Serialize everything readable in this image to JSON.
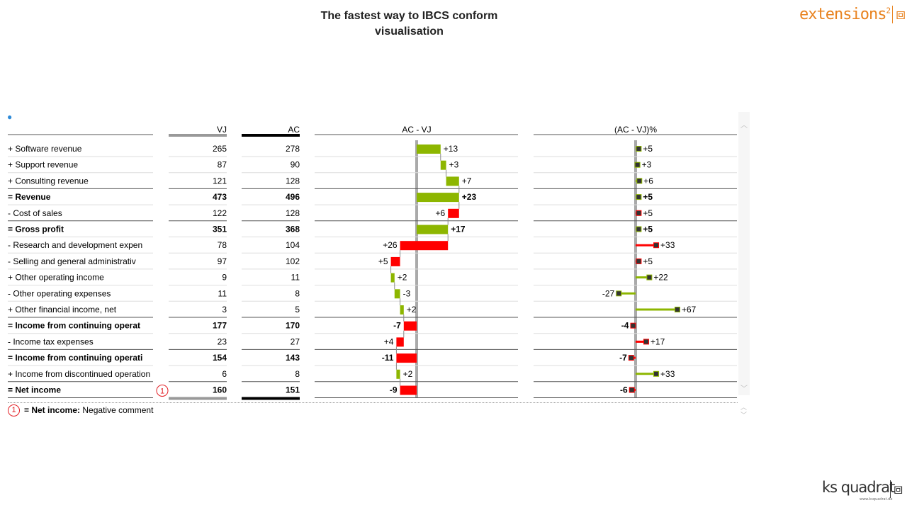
{
  "title_line1": "The fastest  way to IBCS conform",
  "title_line2": "visualisation",
  "logo_top": {
    "text": "extensions",
    "sup": "2",
    "mark": "⧈"
  },
  "logo_bottom": {
    "text": "ks quadrat",
    "sub": "www.ksquadrat.de",
    "mark": "⧈"
  },
  "comment": {
    "marker": "1",
    "label": "= Net income:",
    "text": "Negative comment"
  },
  "colors": {
    "positive": "#8db600",
    "negative": "#ff0000",
    "axis": "#aaaaaa",
    "marker": "#333333"
  },
  "chart_data": {
    "type": "table",
    "columns": {
      "label": "",
      "vj": "VJ",
      "ac": "AC",
      "delta": "AC - VJ",
      "delta_pct": "(AC - VJ)%"
    },
    "rows": [
      {
        "label": "+ Software revenue",
        "vj": 265,
        "ac": 278,
        "delta": 13,
        "delta_label": "+13",
        "pct": 5,
        "pct_label": "+5",
        "bold": false,
        "total": false
      },
      {
        "label": "+ Support revenue",
        "vj": 87,
        "ac": 90,
        "delta": 3,
        "delta_label": "+3",
        "pct": 3,
        "pct_label": "+3",
        "bold": false,
        "total": false
      },
      {
        "label": "+ Consulting revenue",
        "vj": 121,
        "ac": 128,
        "delta": 7,
        "delta_label": "+7",
        "pct": 6,
        "pct_label": "+6",
        "bold": false,
        "total": false
      },
      {
        "label": "= Revenue",
        "vj": 473,
        "ac": 496,
        "delta": 23,
        "delta_label": "+23",
        "pct": 5,
        "pct_label": "+5",
        "bold": true,
        "total": true
      },
      {
        "label": "- Cost of sales",
        "vj": 122,
        "ac": 128,
        "delta": -6,
        "delta_label": "+6",
        "pct": 5,
        "pct_label": "+5",
        "bold": false,
        "total": false
      },
      {
        "label": "= Gross profit",
        "vj": 351,
        "ac": 368,
        "delta": 17,
        "delta_label": "+17",
        "pct": 5,
        "pct_label": "+5",
        "bold": true,
        "total": true
      },
      {
        "label": "- Research and development expen",
        "vj": 78,
        "ac": 104,
        "delta": -26,
        "delta_label": "+26",
        "pct": 33,
        "pct_label": "+33",
        "bold": false,
        "total": false
      },
      {
        "label": "- Selling and general administrativ",
        "vj": 97,
        "ac": 102,
        "delta": -5,
        "delta_label": "+5",
        "pct": 5,
        "pct_label": "+5",
        "bold": false,
        "total": false
      },
      {
        "label": "+ Other operating income",
        "vj": 9,
        "ac": 11,
        "delta": 2,
        "delta_label": "+2",
        "pct": 22,
        "pct_label": "+22",
        "bold": false,
        "total": false
      },
      {
        "label": "- Other operating expenses",
        "vj": 11,
        "ac": 8,
        "delta": 3,
        "delta_label": "-3",
        "pct": -27,
        "pct_label": "-27",
        "bold": false,
        "total": false
      },
      {
        "label": "+ Other financial income, net",
        "vj": 3,
        "ac": 5,
        "delta": 2,
        "delta_label": "+2",
        "pct": 67,
        "pct_label": "+67",
        "bold": false,
        "total": false
      },
      {
        "label": "= Income from continuing operat",
        "vj": 177,
        "ac": 170,
        "delta": -7,
        "delta_label": "-7",
        "pct": -4,
        "pct_label": "-4",
        "bold": true,
        "total": true
      },
      {
        "label": "- Income tax expenses",
        "vj": 23,
        "ac": 27,
        "delta": -4,
        "delta_label": "+4",
        "pct": 17,
        "pct_label": "+17",
        "bold": false,
        "total": false
      },
      {
        "label": "= Income from continuing operati",
        "vj": 154,
        "ac": 143,
        "delta": -11,
        "delta_label": "-11",
        "pct": -7,
        "pct_label": "-7",
        "bold": true,
        "total": true
      },
      {
        "label": "+ Income from discontinued operation",
        "vj": 6,
        "ac": 8,
        "delta": 2,
        "delta_label": "+2",
        "pct": 33,
        "pct_label": "+33",
        "bold": false,
        "total": false
      },
      {
        "label": "= Net income",
        "vj": 160,
        "ac": 151,
        "delta": -9,
        "delta_label": "-9",
        "pct": -6,
        "pct_label": "-6",
        "bold": true,
        "total": true,
        "has_comment": true
      }
    ]
  }
}
